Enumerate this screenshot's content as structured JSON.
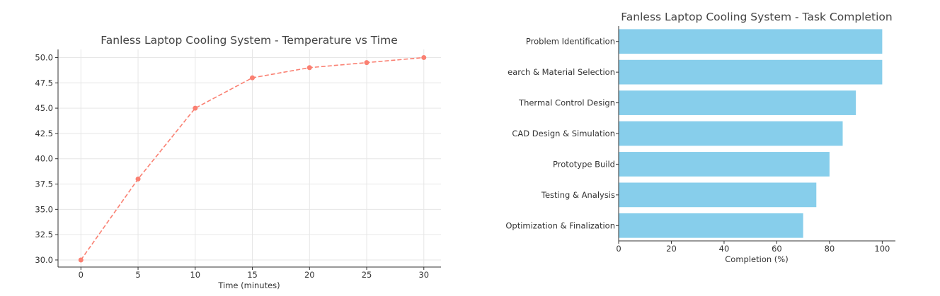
{
  "chart_data": [
    {
      "type": "line",
      "title": "Fanless Laptop Cooling System - Temperature vs Time",
      "xlabel": "Time (minutes)",
      "ylabel": "",
      "x": [
        0,
        5,
        10,
        15,
        20,
        25,
        30
      ],
      "series": [
        {
          "values": [
            30.0,
            38.0,
            45.0,
            48.0,
            49.0,
            49.5,
            50.0
          ]
        }
      ],
      "xlim": [
        -2,
        31.5
      ],
      "ylim": [
        29.3,
        50.8
      ],
      "xticks": [
        "0",
        "5",
        "10",
        "15",
        "20",
        "25",
        "30"
      ],
      "yticks": [
        "30.0",
        "32.5",
        "35.0",
        "37.5",
        "40.0",
        "42.5",
        "45.0",
        "47.5",
        "50.0"
      ],
      "grid": true,
      "color": "#fa8072",
      "line_style": "dashed",
      "marker": "circle"
    },
    {
      "type": "bar",
      "orientation": "horizontal",
      "title": "Fanless Laptop Cooling System - Task Completion",
      "xlabel": "Completion (%)",
      "ylabel": "",
      "categories": [
        "Problem Identification",
        "earch & Material Selection",
        "Thermal Control Design",
        "CAD Design & Simulation",
        "Prototype Build",
        "Testing & Analysis",
        "Optimization & Finalization"
      ],
      "values": [
        100,
        100,
        90,
        85,
        80,
        75,
        70
      ],
      "xlim": [
        0,
        105
      ],
      "xticks": [
        "0",
        "20",
        "40",
        "60",
        "80",
        "100"
      ],
      "grid": false,
      "color": "#87ceeb"
    }
  ]
}
